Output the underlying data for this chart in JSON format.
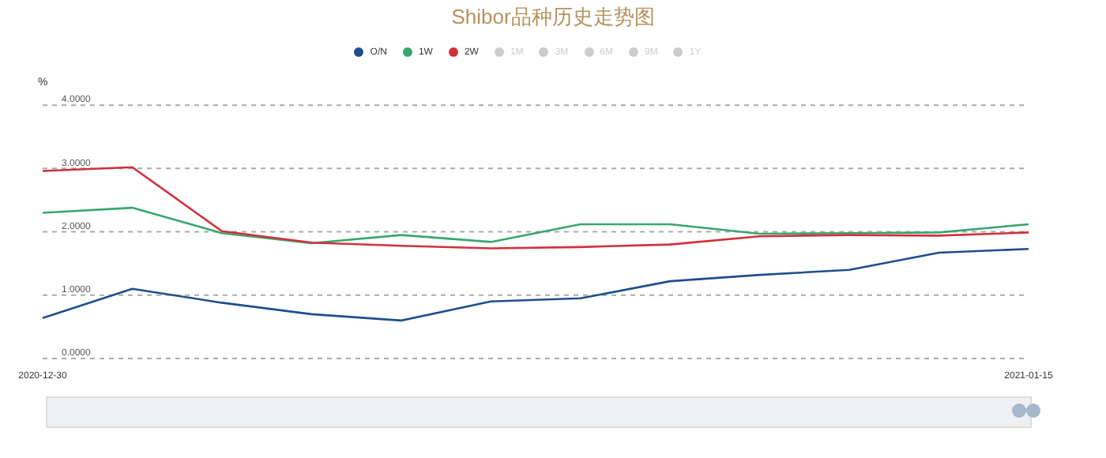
{
  "chart_data": {
    "type": "line",
    "title": "Shibor品种历史走势图",
    "ylabel": "%",
    "categories": [
      "2020-12-30",
      null,
      null,
      null,
      null,
      null,
      null,
      null,
      null,
      null,
      null,
      "2021-01-15"
    ],
    "series": [
      {
        "name": "O/N",
        "color": "#1f4e8c",
        "values": [
          0.64,
          1.1,
          0.88,
          0.7,
          0.6,
          0.9,
          0.95,
          1.22,
          1.32,
          1.4,
          1.67,
          1.73
        ]
      },
      {
        "name": "1W",
        "color": "#3aa66e",
        "values": [
          2.3,
          2.38,
          1.98,
          1.82,
          1.95,
          1.84,
          2.12,
          2.12,
          1.97,
          1.98,
          1.99,
          2.12
        ]
      },
      {
        "name": "2W",
        "color": "#d1303d",
        "values": [
          2.96,
          3.02,
          2.01,
          1.83,
          1.78,
          1.74,
          1.76,
          1.8,
          1.93,
          1.95,
          1.94,
          1.99
        ]
      },
      {
        "name": "1M",
        "color": "#cccccc",
        "values": [
          null,
          null,
          null,
          null,
          null,
          null,
          null,
          null,
          null,
          null,
          null,
          null
        ]
      },
      {
        "name": "3M",
        "color": "#cccccc",
        "values": [
          null,
          null,
          null,
          null,
          null,
          null,
          null,
          null,
          null,
          null,
          null,
          null
        ]
      },
      {
        "name": "6M",
        "color": "#cccccc",
        "values": [
          null,
          null,
          null,
          null,
          null,
          null,
          null,
          null,
          null,
          null,
          null,
          null
        ]
      },
      {
        "name": "9M",
        "color": "#cccccc",
        "values": [
          null,
          null,
          null,
          null,
          null,
          null,
          null,
          null,
          null,
          null,
          null,
          null
        ]
      },
      {
        "name": "1Y",
        "color": "#cccccc",
        "values": [
          null,
          null,
          null,
          null,
          null,
          null,
          null,
          null,
          null,
          null,
          null,
          null
        ]
      }
    ],
    "ylim": [
      0,
      4
    ],
    "yticks": [
      {
        "value": 0,
        "label": "0.0000"
      },
      {
        "value": 1,
        "label": "1.0000"
      },
      {
        "value": 2,
        "label": "2.0000"
      },
      {
        "value": 3,
        "label": "3.0000"
      },
      {
        "value": 4,
        "label": "4.0000"
      }
    ],
    "grid": "y",
    "legend": "top",
    "marker": "none",
    "line_style": "solid"
  }
}
